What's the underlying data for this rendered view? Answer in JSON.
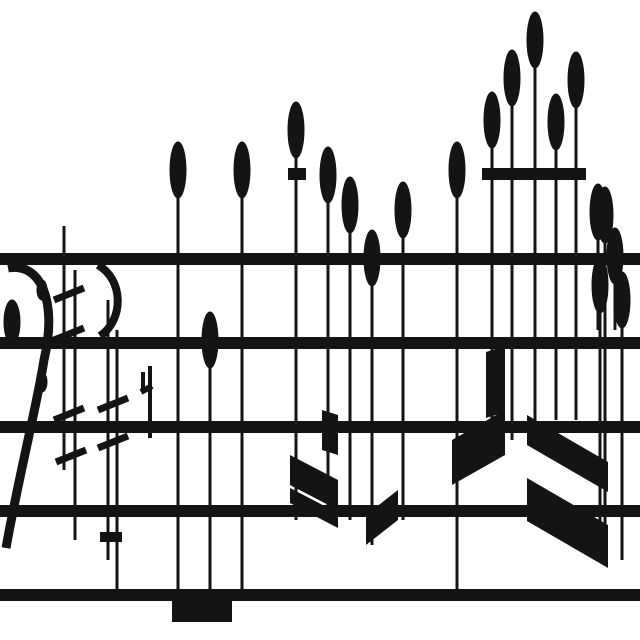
{
  "score": {
    "colors": {
      "ink": "#141414",
      "paper": "#ffffff"
    },
    "icons": [
      "bass-clef-icon",
      "sharp-icon",
      "natural-icon",
      "quarter-note-icon",
      "beam-icon"
    ],
    "staff_line_count": 5,
    "note_count": 19
  }
}
